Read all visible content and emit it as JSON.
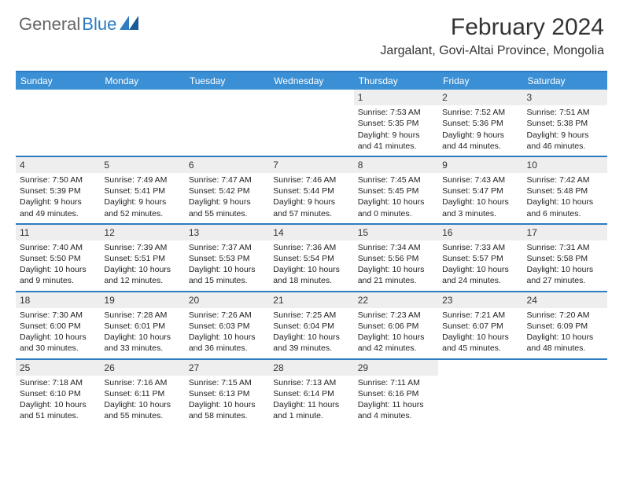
{
  "logo": {
    "general": "General",
    "blue": "Blue"
  },
  "title": "February 2024",
  "location": "Jargalant, Govi-Altai Province, Mongolia",
  "colors": {
    "header_bg": "#3b8fd4",
    "rule": "#2d7cc1",
    "day_num_bg": "#eeeeee",
    "text": "#222222"
  },
  "weekdays": [
    "Sunday",
    "Monday",
    "Tuesday",
    "Wednesday",
    "Thursday",
    "Friday",
    "Saturday"
  ],
  "weeks": [
    [
      {
        "n": "",
        "sr": "",
        "ss": "",
        "dl": ""
      },
      {
        "n": "",
        "sr": "",
        "ss": "",
        "dl": ""
      },
      {
        "n": "",
        "sr": "",
        "ss": "",
        "dl": ""
      },
      {
        "n": "",
        "sr": "",
        "ss": "",
        "dl": ""
      },
      {
        "n": "1",
        "sr": "Sunrise: 7:53 AM",
        "ss": "Sunset: 5:35 PM",
        "dl": "Daylight: 9 hours and 41 minutes."
      },
      {
        "n": "2",
        "sr": "Sunrise: 7:52 AM",
        "ss": "Sunset: 5:36 PM",
        "dl": "Daylight: 9 hours and 44 minutes."
      },
      {
        "n": "3",
        "sr": "Sunrise: 7:51 AM",
        "ss": "Sunset: 5:38 PM",
        "dl": "Daylight: 9 hours and 46 minutes."
      }
    ],
    [
      {
        "n": "4",
        "sr": "Sunrise: 7:50 AM",
        "ss": "Sunset: 5:39 PM",
        "dl": "Daylight: 9 hours and 49 minutes."
      },
      {
        "n": "5",
        "sr": "Sunrise: 7:49 AM",
        "ss": "Sunset: 5:41 PM",
        "dl": "Daylight: 9 hours and 52 minutes."
      },
      {
        "n": "6",
        "sr": "Sunrise: 7:47 AM",
        "ss": "Sunset: 5:42 PM",
        "dl": "Daylight: 9 hours and 55 minutes."
      },
      {
        "n": "7",
        "sr": "Sunrise: 7:46 AM",
        "ss": "Sunset: 5:44 PM",
        "dl": "Daylight: 9 hours and 57 minutes."
      },
      {
        "n": "8",
        "sr": "Sunrise: 7:45 AM",
        "ss": "Sunset: 5:45 PM",
        "dl": "Daylight: 10 hours and 0 minutes."
      },
      {
        "n": "9",
        "sr": "Sunrise: 7:43 AM",
        "ss": "Sunset: 5:47 PM",
        "dl": "Daylight: 10 hours and 3 minutes."
      },
      {
        "n": "10",
        "sr": "Sunrise: 7:42 AM",
        "ss": "Sunset: 5:48 PM",
        "dl": "Daylight: 10 hours and 6 minutes."
      }
    ],
    [
      {
        "n": "11",
        "sr": "Sunrise: 7:40 AM",
        "ss": "Sunset: 5:50 PM",
        "dl": "Daylight: 10 hours and 9 minutes."
      },
      {
        "n": "12",
        "sr": "Sunrise: 7:39 AM",
        "ss": "Sunset: 5:51 PM",
        "dl": "Daylight: 10 hours and 12 minutes."
      },
      {
        "n": "13",
        "sr": "Sunrise: 7:37 AM",
        "ss": "Sunset: 5:53 PM",
        "dl": "Daylight: 10 hours and 15 minutes."
      },
      {
        "n": "14",
        "sr": "Sunrise: 7:36 AM",
        "ss": "Sunset: 5:54 PM",
        "dl": "Daylight: 10 hours and 18 minutes."
      },
      {
        "n": "15",
        "sr": "Sunrise: 7:34 AM",
        "ss": "Sunset: 5:56 PM",
        "dl": "Daylight: 10 hours and 21 minutes."
      },
      {
        "n": "16",
        "sr": "Sunrise: 7:33 AM",
        "ss": "Sunset: 5:57 PM",
        "dl": "Daylight: 10 hours and 24 minutes."
      },
      {
        "n": "17",
        "sr": "Sunrise: 7:31 AM",
        "ss": "Sunset: 5:58 PM",
        "dl": "Daylight: 10 hours and 27 minutes."
      }
    ],
    [
      {
        "n": "18",
        "sr": "Sunrise: 7:30 AM",
        "ss": "Sunset: 6:00 PM",
        "dl": "Daylight: 10 hours and 30 minutes."
      },
      {
        "n": "19",
        "sr": "Sunrise: 7:28 AM",
        "ss": "Sunset: 6:01 PM",
        "dl": "Daylight: 10 hours and 33 minutes."
      },
      {
        "n": "20",
        "sr": "Sunrise: 7:26 AM",
        "ss": "Sunset: 6:03 PM",
        "dl": "Daylight: 10 hours and 36 minutes."
      },
      {
        "n": "21",
        "sr": "Sunrise: 7:25 AM",
        "ss": "Sunset: 6:04 PM",
        "dl": "Daylight: 10 hours and 39 minutes."
      },
      {
        "n": "22",
        "sr": "Sunrise: 7:23 AM",
        "ss": "Sunset: 6:06 PM",
        "dl": "Daylight: 10 hours and 42 minutes."
      },
      {
        "n": "23",
        "sr": "Sunrise: 7:21 AM",
        "ss": "Sunset: 6:07 PM",
        "dl": "Daylight: 10 hours and 45 minutes."
      },
      {
        "n": "24",
        "sr": "Sunrise: 7:20 AM",
        "ss": "Sunset: 6:09 PM",
        "dl": "Daylight: 10 hours and 48 minutes."
      }
    ],
    [
      {
        "n": "25",
        "sr": "Sunrise: 7:18 AM",
        "ss": "Sunset: 6:10 PM",
        "dl": "Daylight: 10 hours and 51 minutes."
      },
      {
        "n": "26",
        "sr": "Sunrise: 7:16 AM",
        "ss": "Sunset: 6:11 PM",
        "dl": "Daylight: 10 hours and 55 minutes."
      },
      {
        "n": "27",
        "sr": "Sunrise: 7:15 AM",
        "ss": "Sunset: 6:13 PM",
        "dl": "Daylight: 10 hours and 58 minutes."
      },
      {
        "n": "28",
        "sr": "Sunrise: 7:13 AM",
        "ss": "Sunset: 6:14 PM",
        "dl": "Daylight: 11 hours and 1 minute."
      },
      {
        "n": "29",
        "sr": "Sunrise: 7:11 AM",
        "ss": "Sunset: 6:16 PM",
        "dl": "Daylight: 11 hours and 4 minutes."
      },
      {
        "n": "",
        "sr": "",
        "ss": "",
        "dl": ""
      },
      {
        "n": "",
        "sr": "",
        "ss": "",
        "dl": ""
      }
    ]
  ]
}
